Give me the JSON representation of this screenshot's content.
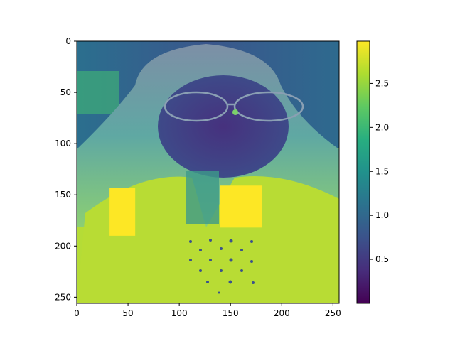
{
  "chart_data": {
    "type": "heatmap",
    "title": "",
    "xlabel": "",
    "ylabel": "",
    "xlim": [
      0,
      256
    ],
    "ylim": [
      256,
      0
    ],
    "x_ticks": [
      "0",
      "50",
      "100",
      "150",
      "200",
      "250"
    ],
    "y_ticks": [
      "0",
      "50",
      "100",
      "150",
      "200",
      "250"
    ],
    "colormap": "viridis",
    "colorbar": {
      "range": [
        0.0,
        2.98
      ],
      "ticks": [
        "0.5",
        "1.0",
        "1.5",
        "2.0",
        "2.5"
      ]
    },
    "content": "grayscale-like image of a person's face rendered with viridis colormap; two saturated rectangles at maximum value",
    "saturated_patches": [
      {
        "x_range": [
          32,
          57
        ],
        "y_range": [
          143,
          190
        ],
        "value": 2.98
      },
      {
        "x_range": [
          140,
          181
        ],
        "y_range": [
          141,
          182
        ],
        "value": 2.98
      }
    ],
    "colors": {
      "max": "#fde725",
      "high": "#b5de2b",
      "mid": "#21918c",
      "low": "#3b528b",
      "min": "#440154"
    }
  }
}
